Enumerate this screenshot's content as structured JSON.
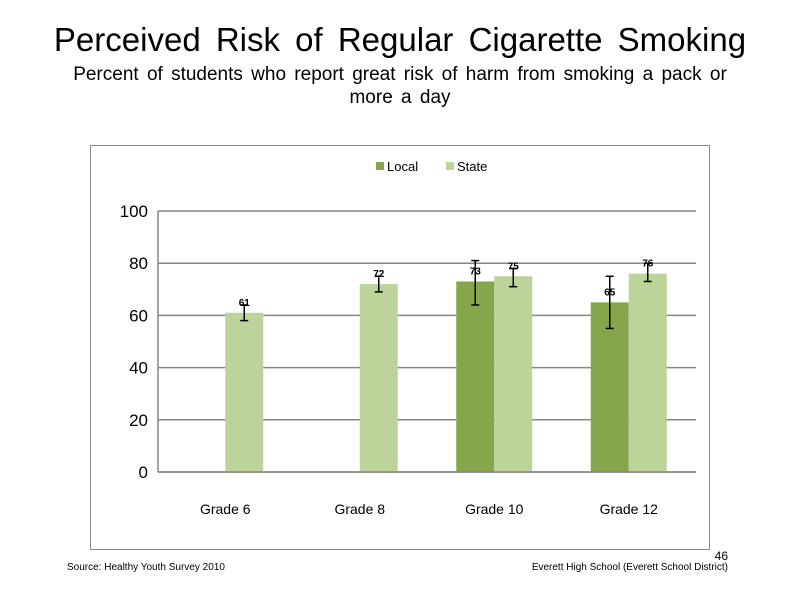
{
  "slide": {
    "title": "Perceived Risk of Regular Cigarette Smoking",
    "subtitle_line1": "Percent of students who report great risk of harm from smoking a pack or",
    "subtitle_line2": "more a day",
    "source": "Source: Healthy Youth Survey 2010",
    "school": "Everett High School (Everett School District)",
    "page_number": "46"
  },
  "chart_data": {
    "type": "bar",
    "categories": [
      "Grade 6",
      "Grade 8",
      "Grade 10",
      "Grade 12"
    ],
    "series": [
      {
        "name": "Local",
        "color": "#86a64c",
        "values": [
          null,
          null,
          73,
          65
        ],
        "labels": [
          "",
          "",
          "73",
          "65"
        ],
        "err_low": [
          null,
          null,
          64,
          55
        ],
        "err_high": [
          null,
          null,
          81,
          75
        ]
      },
      {
        "name": "State",
        "color": "#bcd39a",
        "values": [
          61,
          72,
          75,
          76
        ],
        "labels": [
          "61",
          "72",
          "75",
          "76"
        ],
        "err_low": [
          58,
          69,
          71,
          73
        ],
        "err_high": [
          64,
          75,
          78,
          80
        ]
      }
    ],
    "ylim": [
      0,
      100
    ],
    "yticks": [
      0,
      20,
      40,
      60,
      80,
      100
    ],
    "grid": true,
    "legend": "top-center"
  }
}
